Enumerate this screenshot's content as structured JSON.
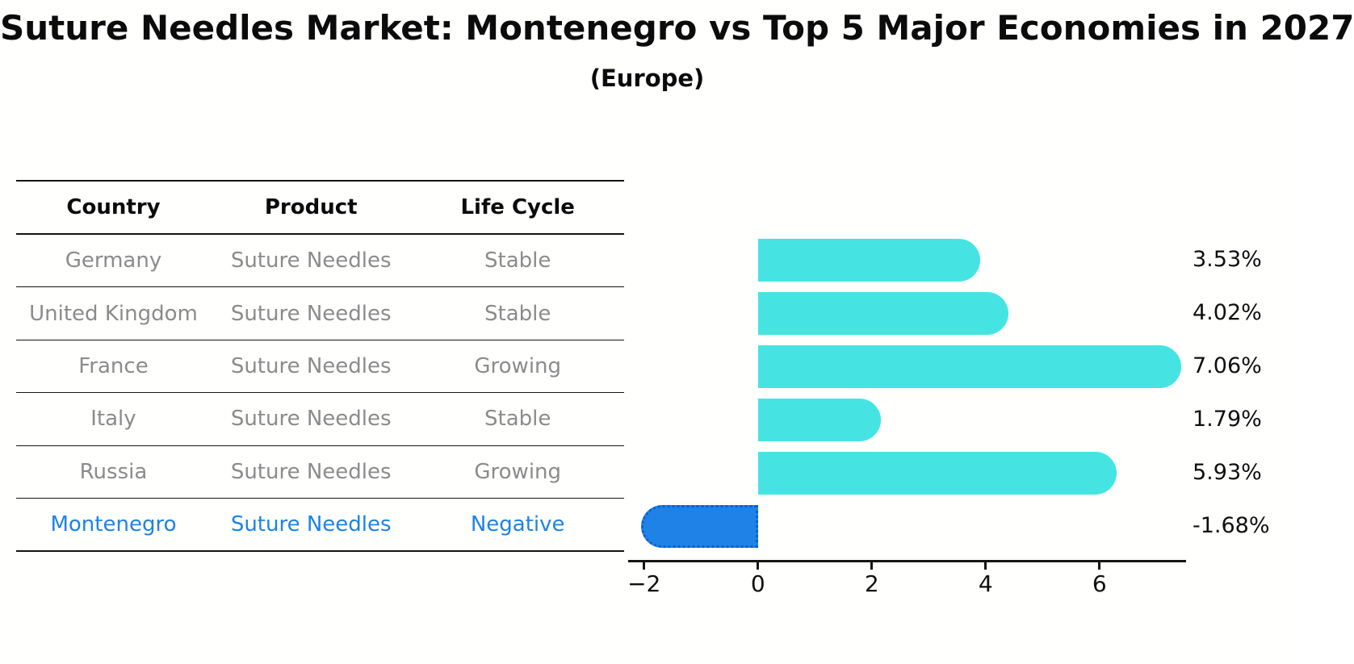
{
  "title": "Suture Needles Market: Montenegro vs Top 5 Major Economies in 2027",
  "subtitle": "(Europe)",
  "table": {
    "headers": [
      "Country",
      "Product",
      "Life Cycle"
    ],
    "rows": [
      {
        "country": "Germany",
        "product": "Suture Needles",
        "life_cycle": "Stable",
        "highlight": false
      },
      {
        "country": "United Kingdom",
        "product": "Suture Needles",
        "life_cycle": "Stable",
        "highlight": false
      },
      {
        "country": "France",
        "product": "Suture Needles",
        "life_cycle": "Growing",
        "highlight": false
      },
      {
        "country": "Italy",
        "product": "Suture Needles",
        "life_cycle": "Stable",
        "highlight": false
      },
      {
        "country": "Russia",
        "product": "Suture Needles",
        "life_cycle": "Growing",
        "highlight": false
      },
      {
        "country": "Montenegro",
        "product": "Suture Needles",
        "life_cycle": "Negative",
        "highlight": true
      }
    ]
  },
  "chart_data": {
    "type": "bar",
    "orientation": "horizontal",
    "title": "Suture Needles Market: Montenegro vs Top 5 Major Economies in 2027 (Europe)",
    "categories": [
      "Germany",
      "United Kingdom",
      "France",
      "Italy",
      "Russia",
      "Montenegro"
    ],
    "values": [
      3.53,
      4.02,
      7.06,
      1.79,
      5.93,
      -1.68
    ],
    "value_labels": [
      "3.53%",
      "4.02%",
      "7.06%",
      "1.79%",
      "5.93%",
      "-1.68%"
    ],
    "xlabel": "",
    "ylabel": "",
    "xlim": [
      -2.28,
      7.52
    ],
    "x_ticks": [
      -2,
      0,
      2,
      4,
      6
    ],
    "x_tick_labels": [
      "−2",
      "0",
      "2",
      "4",
      "6"
    ],
    "grid": false,
    "legend": false,
    "bar_color": "#45E4E2",
    "highlight_color": "#1E82E6",
    "highlight_index": 5
  },
  "colors": {
    "background": "#FFFFFE",
    "bar_cyan": "#45E4E2",
    "bar_blue": "#1E82E6",
    "bar_blue_dot_border": "#0C5FD0",
    "row_text_gray": "#8B8B8B",
    "highlight_text_blue": "#1E82E6",
    "line_black": "#151515",
    "label_black": "#0F0F0F"
  }
}
